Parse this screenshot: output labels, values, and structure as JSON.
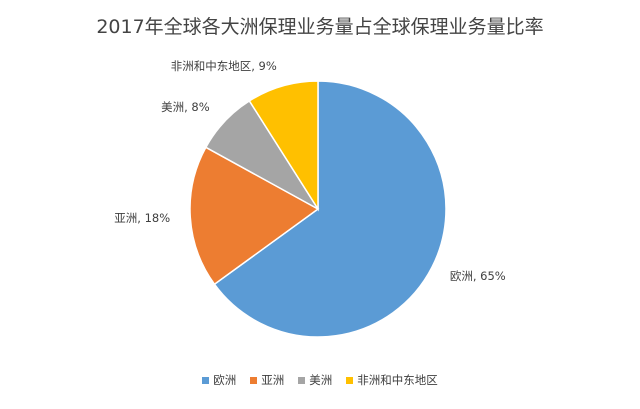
{
  "chart_data": {
    "type": "pie",
    "title": "2017年全球各大洲保理业务量占全球保理业务量比率",
    "categories": [
      "欧洲",
      "亚洲",
      "美洲",
      "非洲和中东地区"
    ],
    "values": [
      65,
      18,
      8,
      9
    ],
    "value_labels": [
      "欧洲, 65%",
      "亚洲, 18%",
      "美洲, 8%",
      "非洲和中东地区, 9%"
    ],
    "colors": [
      "#5b9bd5",
      "#ed7d31",
      "#a5a5a5",
      "#ffc000"
    ],
    "legend": "bottom"
  }
}
